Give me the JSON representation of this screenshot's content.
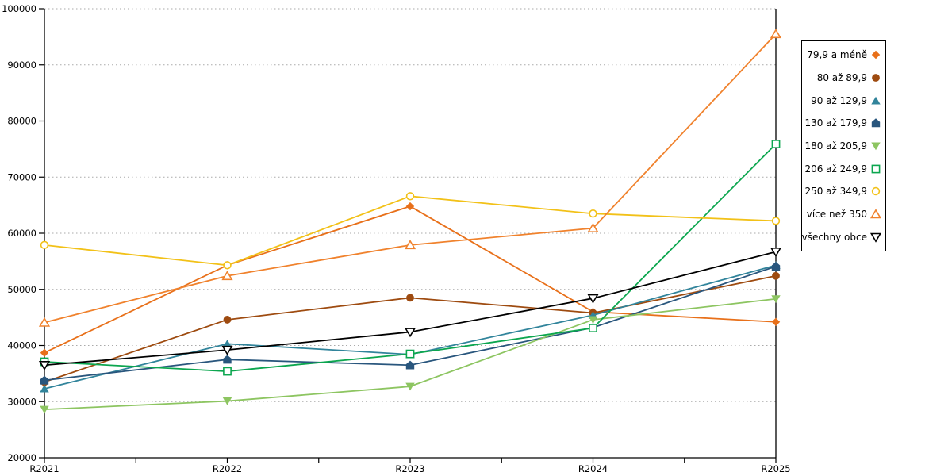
{
  "chart_data": {
    "type": "line",
    "title": "",
    "xlabel": "",
    "ylabel": "",
    "categories": [
      "R2021",
      "R2022",
      "R2023",
      "R2024",
      "R2025"
    ],
    "series": [
      {
        "name": "79,9 a méně",
        "color": "#E8701A",
        "marker": "diamond",
        "filled": true,
        "values": [
          38700,
          54300,
          64800,
          46000,
          44200
        ]
      },
      {
        "name": "80 až 89,9",
        "color": "#9E4B10",
        "marker": "circle",
        "filled": true,
        "values": [
          33500,
          44600,
          48500,
          45800,
          52400
        ]
      },
      {
        "name": "90 až 129,9",
        "color": "#31849B",
        "marker": "triangle-up",
        "filled": true,
        "values": [
          32300,
          40300,
          38400,
          45400,
          54300
        ]
      },
      {
        "name": "130 až 179,9",
        "color": "#29567D",
        "marker": "pentagon",
        "filled": true,
        "values": [
          33800,
          37500,
          36500,
          43200,
          54100
        ]
      },
      {
        "name": "180 až 205,9",
        "color": "#8DC561",
        "marker": "triangle-down",
        "filled": true,
        "values": [
          28600,
          30100,
          32700,
          44600,
          48300
        ]
      },
      {
        "name": "206 až 249,9",
        "color": "#0CA64F",
        "marker": "square",
        "filled": false,
        "values": [
          37100,
          35400,
          38500,
          43100,
          75900
        ]
      },
      {
        "name": "250 až 349,9",
        "color": "#F2C118",
        "marker": "circle",
        "filled": false,
        "values": [
          57900,
          54300,
          66600,
          63500,
          62200
        ]
      },
      {
        "name": "více než 350",
        "color": "#F0822D",
        "marker": "triangle-up",
        "filled": false,
        "values": [
          44100,
          52400,
          57900,
          60900,
          95500
        ]
      },
      {
        "name": "všechny obce",
        "color": "#000000",
        "marker": "triangle-down",
        "filled": false,
        "values": [
          36500,
          39200,
          42400,
          48400,
          56700
        ]
      }
    ],
    "ylim": [
      20000,
      100000
    ],
    "ytick_step": 10000,
    "ytick_labels": [
      "20000",
      "30000",
      "40000",
      "50000",
      "60000",
      "70000",
      "80000",
      "90000",
      "100000"
    ],
    "grid": "horizontal dotted gray",
    "legend_position": "right",
    "axis_color": "#000000",
    "grid_color": "#AAAAAA"
  }
}
